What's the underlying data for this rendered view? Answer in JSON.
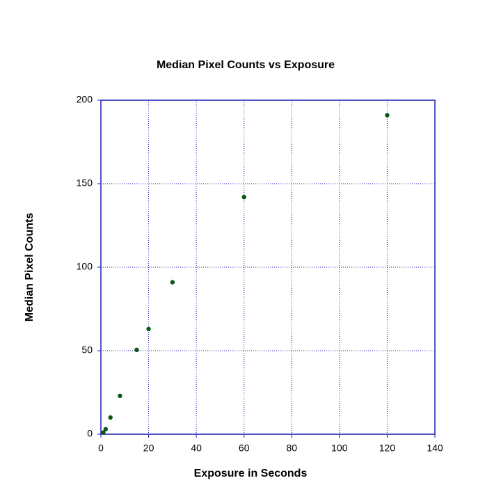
{
  "chart_data": {
    "type": "scatter",
    "title": "Median Pixel Counts vs Exposure",
    "x_label": "Exposure in Seconds",
    "y_label": "Median Pixel Counts",
    "x": [
      1,
      2,
      4,
      8,
      15,
      20,
      30,
      60,
      120
    ],
    "values": [
      1,
      3,
      10,
      23,
      50.5,
      63,
      91,
      142,
      191
    ],
    "color": "#0b5a14",
    "axis_color": "#1c1cb4",
    "xlim": [
      0,
      140
    ],
    "xticks": [
      0,
      20,
      40,
      60,
      80,
      100,
      120,
      140
    ],
    "ylim": [
      0,
      200
    ],
    "yticks": [
      0,
      50,
      100,
      150,
      200
    ],
    "grid": true
  }
}
